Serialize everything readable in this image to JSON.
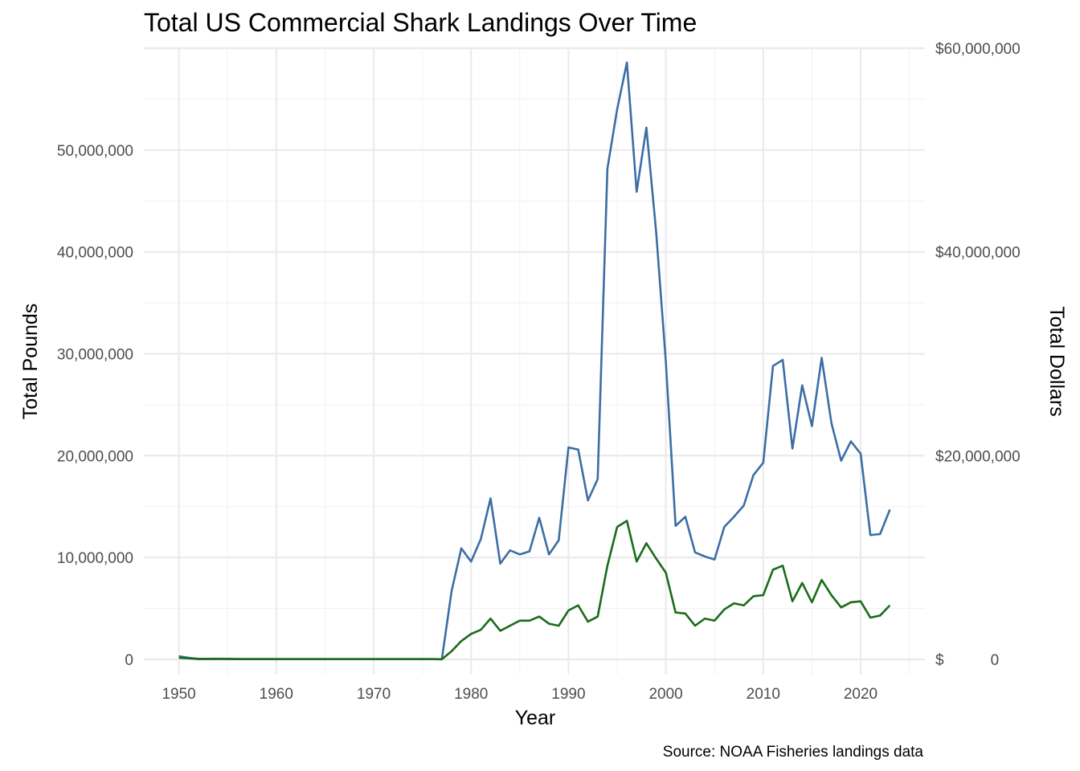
{
  "chart_data": {
    "type": "line",
    "title": "Total US Commercial Shark Landings Over Time",
    "xlabel": "Year",
    "ylabel": "Total Pounds",
    "ylabel_right": "Total Dollars",
    "caption": "Source: NOAA Fisheries landings data",
    "x": [
      1950,
      1951,
      1952,
      1953,
      1954,
      1955,
      1956,
      1957,
      1958,
      1959,
      1960,
      1961,
      1962,
      1963,
      1964,
      1965,
      1966,
      1967,
      1968,
      1969,
      1970,
      1971,
      1972,
      1973,
      1974,
      1975,
      1976,
      1977,
      1978,
      1979,
      1980,
      1981,
      1982,
      1983,
      1984,
      1985,
      1986,
      1987,
      1988,
      1989,
      1990,
      1991,
      1992,
      1993,
      1994,
      1995,
      1996,
      1997,
      1998,
      1999,
      2000,
      2001,
      2002,
      2003,
      2004,
      2005,
      2006,
      2007,
      2008,
      2009,
      2010,
      2011,
      2012,
      2013,
      2014,
      2015,
      2016,
      2017,
      2018,
      2019,
      2020,
      2021,
      2022,
      2023
    ],
    "xlim": [
      1946.4,
      2026.6
    ],
    "ylim": [
      -1500000,
      60000000
    ],
    "x_ticks": [
      "1950",
      "1960",
      "1970",
      "1980",
      "1990",
      "2000",
      "2010",
      "2020"
    ],
    "y_ticks_left": [
      "0",
      "10,000,000",
      "20,000,000",
      "30,000,000",
      "40,000,000",
      "50,000,000"
    ],
    "y_ticks_right": [
      "$           0",
      "$20,000,000",
      "$40,000,000",
      "$60,000,000"
    ],
    "y_tick_values_left": [
      0,
      10000000,
      20000000,
      30000000,
      40000000,
      50000000
    ],
    "y_tick_values_right": [
      0,
      20000000,
      40000000,
      60000000
    ],
    "grid": true,
    "legend": "none",
    "series": [
      {
        "axis": "left",
        "color": "#3b6ea5",
        "values": [
          300000,
          150000,
          50000,
          50000,
          60000,
          50000,
          30000,
          30000,
          30000,
          30000,
          20000,
          20000,
          20000,
          20000,
          20000,
          20000,
          20000,
          20000,
          20000,
          20000,
          20000,
          20000,
          20000,
          20000,
          20000,
          20000,
          20000,
          10000,
          6700000,
          10900000,
          9600000,
          11800000,
          15800000,
          9400000,
          10700000,
          10300000,
          10600000,
          13900000,
          10300000,
          11700000,
          20800000,
          20600000,
          15600000,
          17700000,
          48200000,
          54000000,
          58600000,
          45900000,
          52200000,
          42000000,
          29200000,
          13100000,
          14000000,
          10500000,
          10100000,
          9800000,
          13000000,
          14000000,
          15100000,
          18100000,
          19300000,
          28800000,
          29400000,
          20700000,
          26900000,
          22900000,
          29600000,
          23200000,
          19500000,
          21400000,
          20200000,
          12200000,
          12300000,
          14700000
        ]
      },
      {
        "axis": "right",
        "color": "#1a6b1a",
        "values": [
          150000,
          100000,
          30000,
          30000,
          30000,
          30000,
          20000,
          20000,
          20000,
          20000,
          20000,
          20000,
          20000,
          20000,
          20000,
          20000,
          20000,
          20000,
          20000,
          20000,
          20000,
          20000,
          20000,
          20000,
          20000,
          20000,
          20000,
          10000,
          800000,
          1800000,
          2500000,
          2900000,
          4000000,
          2800000,
          3300000,
          3800000,
          3800000,
          4200000,
          3500000,
          3300000,
          4800000,
          5300000,
          3700000,
          4200000,
          9200000,
          13000000,
          13600000,
          9600000,
          11400000,
          9900000,
          8500000,
          4600000,
          4500000,
          3300000,
          4000000,
          3800000,
          4900000,
          5500000,
          5300000,
          6200000,
          6300000,
          8800000,
          9200000,
          5700000,
          7500000,
          5600000,
          7800000,
          6300000,
          5100000,
          5600000,
          5700000,
          4100000,
          4300000,
          5300000
        ]
      }
    ]
  }
}
